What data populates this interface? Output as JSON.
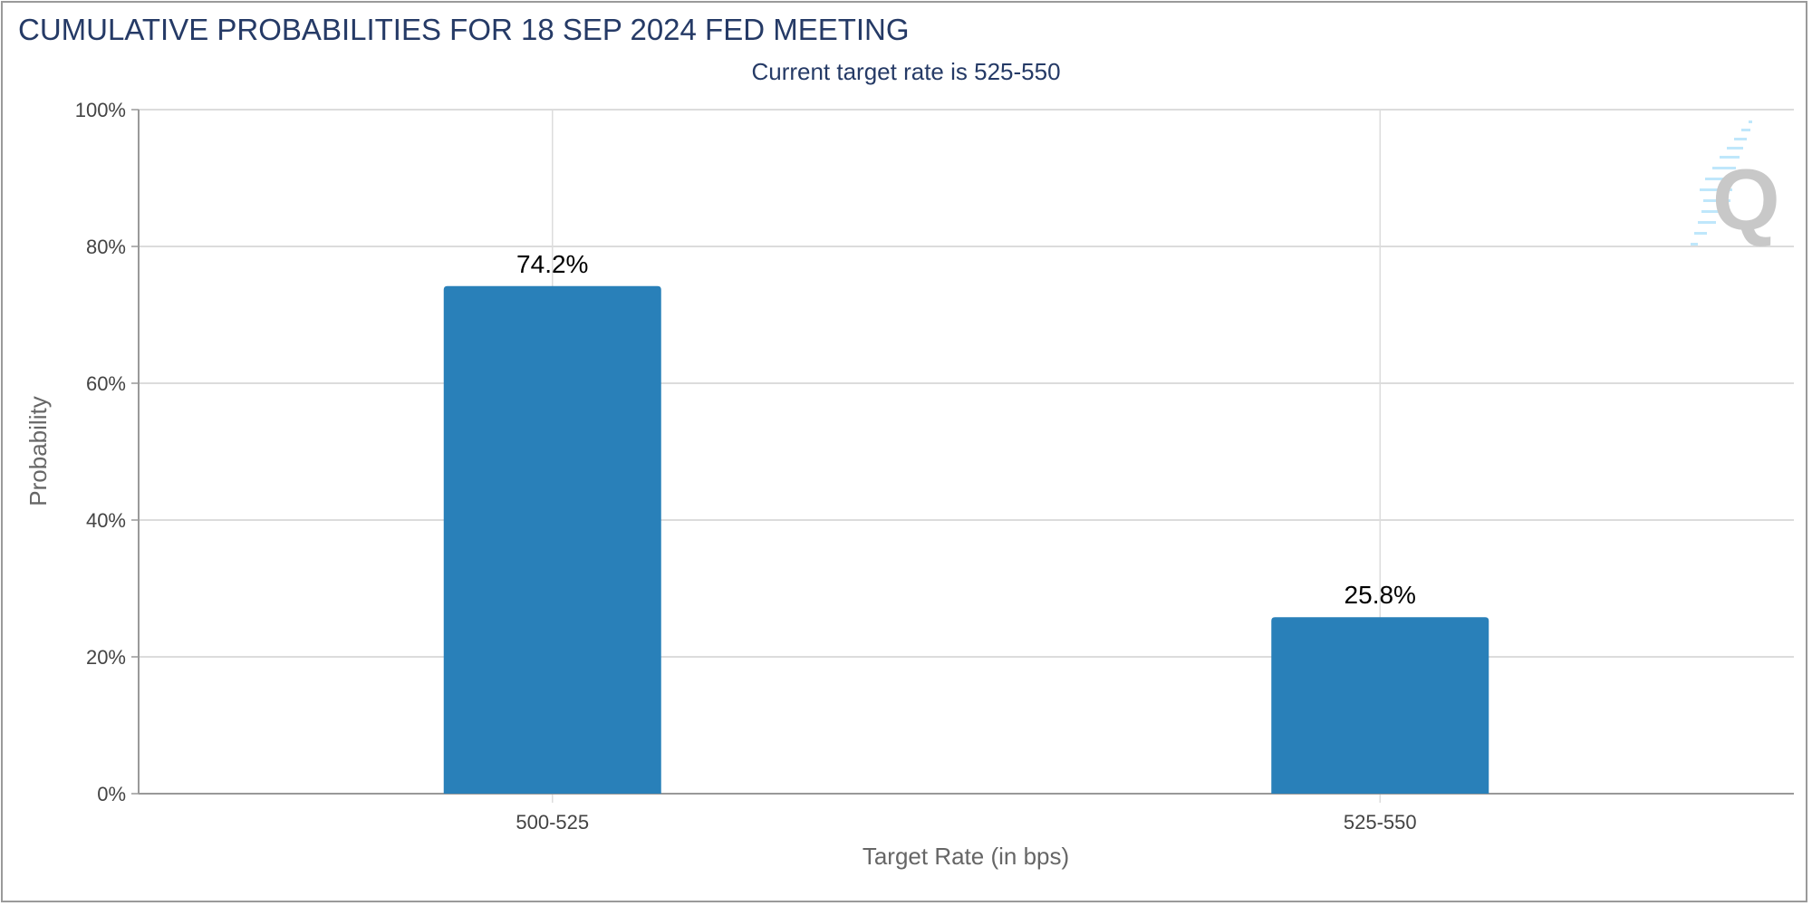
{
  "chart_data": {
    "type": "bar",
    "title": "CUMULATIVE PROBABILITIES FOR 18 SEP 2024 FED MEETING",
    "subtitle": "Current target rate is 525-550",
    "xlabel": "Target Rate (in bps)",
    "ylabel": "Probability",
    "categories": [
      "500-525",
      "525-550"
    ],
    "values": [
      74.2,
      25.8
    ],
    "data_labels": [
      "74.2%",
      "25.8%"
    ],
    "ylim": [
      0,
      100
    ],
    "yticks": [
      "0%",
      "20%",
      "40%",
      "60%",
      "80%",
      "100%"
    ],
    "grid": true,
    "bar_color": "#2980b9",
    "title_color": "#253a66"
  }
}
